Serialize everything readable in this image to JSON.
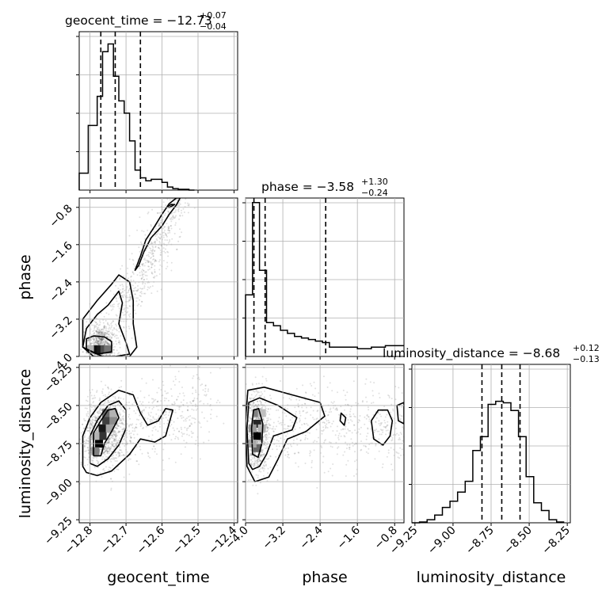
{
  "chart_data": {
    "type": "corner",
    "parameters": [
      "geocent_time",
      "phase",
      "luminosity_distance"
    ],
    "axis_labels": {
      "geocent_time": "geocent_time",
      "phase": "phase",
      "luminosity_distance": "luminosity_distance"
    },
    "ranges": {
      "geocent_time": [
        -12.83,
        -12.39
      ],
      "phase": [
        -4.0,
        -0.6
      ],
      "luminosity_distance": [
        -9.27,
        -8.23
      ]
    },
    "ticks": {
      "geocent_time": {
        "values": [
          -12.8,
          -12.7,
          -12.6,
          -12.5,
          -12.4
        ],
        "labels": [
          "−12.8",
          "−12.7",
          "−12.6",
          "−12.5",
          "−12.4"
        ]
      },
      "phase": {
        "values": [
          -4.0,
          -3.2,
          -2.4,
          -1.6,
          -0.8
        ],
        "labels": [
          "−4.0",
          "−3.2",
          "−2.4",
          "−1.6",
          "−0.8"
        ]
      },
      "luminosity_distance": {
        "values": [
          -9.25,
          -9.0,
          -8.75,
          -8.5,
          -8.25
        ],
        "labels": [
          "−9.25",
          "−9.00",
          "−8.75",
          "−8.50",
          "−8.25"
        ]
      }
    },
    "titles": [
      {
        "param": "geocent_time",
        "main": "geocent_time = −12.73",
        "sup": "+0.07",
        "sub": "−0.04"
      },
      {
        "param": "phase",
        "main": "phase = −3.58",
        "sup": "+1.30",
        "sub": "−0.24"
      },
      {
        "param": "luminosity_distance",
        "main": "luminosity_distance = −8.68",
        "sup": "+0.12",
        "sub": "−0.13"
      }
    ],
    "quantiles": {
      "geocent_time": [
        -12.77,
        -12.73,
        -12.66
      ],
      "phase": [
        -3.82,
        -3.58,
        -2.28
      ],
      "luminosity_distance": [
        -8.81,
        -8.68,
        -8.56
      ]
    },
    "histograms": {
      "geocent_time": {
        "bins": [
          -12.83,
          -12.805,
          -12.78,
          -12.765,
          -12.75,
          -12.735,
          -12.72,
          -12.705,
          -12.69,
          -12.675,
          -12.66,
          -12.645,
          -12.63,
          -12.615,
          -12.6,
          -12.585,
          -12.57,
          -12.555,
          -12.54,
          -12.525,
          -12.51
        ],
        "counts": [
          0.11,
          0.42,
          0.61,
          0.9,
          0.95,
          0.74,
          0.58,
          0.5,
          0.32,
          0.13,
          0.08,
          0.06,
          0.07,
          0.07,
          0.05,
          0.02,
          0.01,
          0.005,
          0.005,
          0.0
        ]
      },
      "phase": {
        "bins": [
          -4.0,
          -3.85,
          -3.7,
          -3.55,
          -3.4,
          -3.25,
          -3.1,
          -2.95,
          -2.8,
          -2.65,
          -2.5,
          -2.35,
          -2.2,
          -1.9,
          -1.6,
          -1.3,
          -1.0,
          -0.6
        ],
        "counts": [
          0.4,
          1.0,
          0.56,
          0.22,
          0.2,
          0.17,
          0.15,
          0.13,
          0.12,
          0.11,
          0.1,
          0.09,
          0.06,
          0.06,
          0.05,
          0.06,
          0.07
        ]
      },
      "luminosity_distance": {
        "bins": [
          -9.27,
          -9.22,
          -9.17,
          -9.12,
          -9.07,
          -9.02,
          -8.97,
          -8.92,
          -8.87,
          -8.82,
          -8.77,
          -8.72,
          -8.67,
          -8.62,
          -8.57,
          -8.52,
          -8.47,
          -8.42,
          -8.37,
          -8.32,
          -8.27
        ],
        "counts": [
          0.0,
          0.005,
          0.02,
          0.05,
          0.1,
          0.14,
          0.2,
          0.27,
          0.47,
          0.56,
          0.77,
          0.79,
          0.78,
          0.73,
          0.56,
          0.3,
          0.13,
          0.08,
          0.02,
          0.005
        ]
      },
      "y_max": 1.03
    },
    "hist2d": [
      {
        "x": "geocent_time",
        "y": "phase",
        "core": [
          [
            -12.79,
            -3.85,
            1.0
          ],
          [
            -12.78,
            -3.85,
            0.95
          ],
          [
            -12.77,
            -3.85,
            0.9
          ],
          [
            -12.76,
            -3.85,
            0.7
          ],
          [
            -12.75,
            -3.85,
            0.55
          ],
          [
            -12.8,
            -3.85,
            0.3
          ]
        ],
        "contours": [
          [
            [
              -12.81,
              -3.62
            ],
            [
              -12.79,
              -3.56
            ],
            [
              -12.76,
              -3.58
            ],
            [
              -12.74,
              -3.68
            ],
            [
              -12.74,
              -3.9
            ],
            [
              -12.78,
              -3.95
            ],
            [
              -12.81,
              -3.85
            ]
          ],
          [
            [
              -12.81,
              -3.4
            ],
            [
              -12.78,
              -3.1
            ],
            [
              -12.75,
              -2.9
            ],
            [
              -12.72,
              -2.6
            ],
            [
              -12.71,
              -2.85
            ],
            [
              -12.72,
              -3.3
            ],
            [
              -12.7,
              -3.7
            ],
            [
              -12.69,
              -3.95
            ],
            [
              -12.73,
              -4.0
            ],
            [
              -12.79,
              -4.0
            ],
            [
              -12.82,
              -3.8
            ]
          ],
          [
            [
              -12.82,
              -3.8
            ],
            [
              -12.82,
              -3.2
            ],
            [
              -12.78,
              -2.8
            ],
            [
              -12.74,
              -2.45
            ],
            [
              -12.72,
              -2.25
            ],
            [
              -12.69,
              -2.4
            ],
            [
              -12.68,
              -2.8
            ],
            [
              -12.68,
              -3.3
            ],
            [
              -12.67,
              -3.8
            ],
            [
              -12.69,
              -4.0
            ],
            [
              -12.76,
              -4.02
            ]
          ],
          [
            [
              -12.675,
              -2.15
            ],
            [
              -12.66,
              -1.85
            ],
            [
              -12.645,
              -1.5
            ],
            [
              -12.62,
              -1.2
            ],
            [
              -12.6,
              -0.95
            ],
            [
              -12.58,
              -0.72
            ],
            [
              -12.56,
              -0.6
            ],
            [
              -12.55,
              -0.6
            ],
            [
              -12.56,
              -0.75
            ],
            [
              -12.58,
              -0.95
            ],
            [
              -12.6,
              -1.2
            ],
            [
              -12.63,
              -1.45
            ],
            [
              -12.65,
              -1.75
            ],
            [
              -12.665,
              -2.05
            ]
          ],
          [
            [
              -12.585,
              -0.78
            ],
            [
              -12.575,
              -0.74
            ],
            [
              -12.565,
              -0.74
            ],
            [
              -12.58,
              -0.8
            ]
          ]
        ]
      },
      {
        "x": "geocent_time",
        "y": "luminosity_distance",
        "core": [
          [
            -12.775,
            -8.75,
            1.0
          ],
          [
            -12.775,
            -8.7,
            0.7
          ],
          [
            -12.765,
            -8.65,
            0.9
          ],
          [
            -12.765,
            -8.7,
            0.8
          ],
          [
            -12.755,
            -8.6,
            0.75
          ],
          [
            -12.745,
            -8.55,
            0.65
          ],
          [
            -12.755,
            -8.55,
            0.6
          ],
          [
            -12.735,
            -8.6,
            0.45
          ],
          [
            -12.785,
            -8.8,
            0.5
          ],
          [
            -12.785,
            -8.7,
            0.3
          ],
          [
            -12.745,
            -8.65,
            0.35
          ],
          [
            -12.735,
            -8.55,
            0.3
          ]
        ],
        "contours": [
          [
            [
              -12.79,
              -8.83
            ],
            [
              -12.79,
              -8.68
            ],
            [
              -12.77,
              -8.6
            ],
            [
              -12.75,
              -8.53
            ],
            [
              -12.73,
              -8.52
            ],
            [
              -12.72,
              -8.58
            ],
            [
              -12.74,
              -8.67
            ],
            [
              -12.76,
              -8.75
            ],
            [
              -12.77,
              -8.83
            ]
          ],
          [
            [
              -12.8,
              -8.88
            ],
            [
              -12.8,
              -8.7
            ],
            [
              -12.78,
              -8.6
            ],
            [
              -12.75,
              -8.5
            ],
            [
              -12.72,
              -8.47
            ],
            [
              -12.7,
              -8.53
            ],
            [
              -12.7,
              -8.65
            ],
            [
              -12.72,
              -8.76
            ],
            [
              -12.75,
              -8.85
            ],
            [
              -12.78,
              -8.9
            ]
          ],
          [
            [
              -12.82,
              -8.9
            ],
            [
              -12.82,
              -8.7
            ],
            [
              -12.8,
              -8.58
            ],
            [
              -12.77,
              -8.48
            ],
            [
              -12.72,
              -8.4
            ],
            [
              -12.68,
              -8.43
            ],
            [
              -12.66,
              -8.55
            ],
            [
              -12.64,
              -8.63
            ],
            [
              -12.61,
              -8.6
            ],
            [
              -12.59,
              -8.52
            ],
            [
              -12.57,
              -8.53
            ],
            [
              -12.59,
              -8.7
            ],
            [
              -12.62,
              -8.74
            ],
            [
              -12.66,
              -8.72
            ],
            [
              -12.69,
              -8.82
            ],
            [
              -12.74,
              -8.93
            ],
            [
              -12.78,
              -8.96
            ],
            [
              -12.81,
              -8.94
            ]
          ]
        ]
      },
      {
        "x": "phase",
        "y": "luminosity_distance",
        "core": [
          [
            -3.75,
            -8.7,
            1.0
          ],
          [
            -3.75,
            -8.62,
            0.85
          ],
          [
            -3.75,
            -8.78,
            0.6
          ],
          [
            -3.75,
            -8.55,
            0.5
          ],
          [
            -3.85,
            -8.65,
            0.4
          ],
          [
            -3.85,
            -8.75,
            0.35
          ],
          [
            -3.65,
            -8.65,
            0.3
          ],
          [
            -3.65,
            -8.55,
            0.25
          ]
        ],
        "contours": [
          [
            [
              -3.85,
              -8.82
            ],
            [
              -3.87,
              -8.65
            ],
            [
              -3.83,
              -8.53
            ],
            [
              -3.72,
              -8.52
            ],
            [
              -3.63,
              -8.62
            ],
            [
              -3.65,
              -8.75
            ],
            [
              -3.73,
              -8.84
            ]
          ],
          [
            [
              -3.93,
              -8.88
            ],
            [
              -3.97,
              -8.65
            ],
            [
              -3.93,
              -8.48
            ],
            [
              -3.7,
              -8.45
            ],
            [
              -3.3,
              -8.5
            ],
            [
              -2.9,
              -8.58
            ],
            [
              -3.0,
              -8.66
            ],
            [
              -3.4,
              -8.7
            ],
            [
              -3.55,
              -8.82
            ],
            [
              -3.7,
              -8.9
            ],
            [
              -3.85,
              -8.92
            ]
          ],
          [
            [
              -3.97,
              -8.9
            ],
            [
              -4.0,
              -8.6
            ],
            [
              -3.95,
              -8.4
            ],
            [
              -3.6,
              -8.38
            ],
            [
              -3.0,
              -8.43
            ],
            [
              -2.4,
              -8.48
            ],
            [
              -2.3,
              -8.57
            ],
            [
              -2.7,
              -8.67
            ],
            [
              -3.1,
              -8.72
            ],
            [
              -3.3,
              -8.85
            ],
            [
              -3.5,
              -8.97
            ],
            [
              -3.8,
              -9.0
            ]
          ],
          [
            [
              -1.3,
              -8.6
            ],
            [
              -1.15,
              -8.53
            ],
            [
              -0.95,
              -8.53
            ],
            [
              -0.85,
              -8.6
            ],
            [
              -0.9,
              -8.7
            ],
            [
              -1.05,
              -8.76
            ],
            [
              -1.25,
              -8.72
            ]
          ],
          [
            [
              -0.6,
              -8.48
            ],
            [
              -0.75,
              -8.5
            ],
            [
              -0.72,
              -8.6
            ],
            [
              -0.6,
              -8.62
            ]
          ],
          [
            [
              -1.95,
              -8.55
            ],
            [
              -1.85,
              -8.58
            ],
            [
              -1.88,
              -8.63
            ],
            [
              -1.97,
              -8.6
            ]
          ]
        ]
      }
    ]
  }
}
